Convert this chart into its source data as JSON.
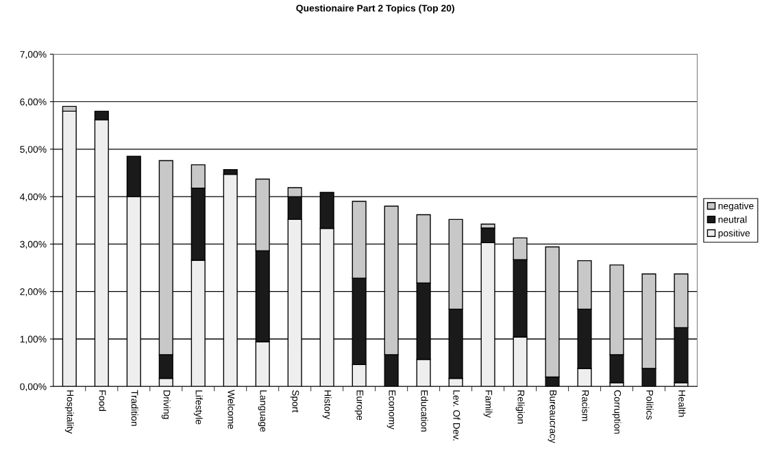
{
  "chart_data": {
    "type": "bar",
    "title": "Questionaire Part 2 Topics (Top 20)",
    "stacked": true,
    "categories": [
      "Hospitality",
      "Food",
      "Tradition",
      "Driving",
      "Lifestyle",
      "Welcome",
      "Language",
      "Sport",
      "History",
      "Europe",
      "Economy",
      "Education",
      "Lev. Of Dev.",
      "Family",
      "Religion",
      "Bureaucracy",
      "Racism",
      "Corruption",
      "Politics",
      "Health"
    ],
    "series": [
      {
        "name": "positive",
        "color": "#eeeeee",
        "values": [
          5.8,
          5.62,
          4.0,
          0.17,
          2.66,
          4.47,
          0.94,
          3.52,
          3.33,
          0.46,
          0,
          0.57,
          0.17,
          3.03,
          1.04,
          0,
          0.38,
          0.08,
          0,
          0.08
        ]
      },
      {
        "name": "neutral",
        "color": "#1a1a1a",
        "values": [
          0,
          0.18,
          0.85,
          0.5,
          1.52,
          0.1,
          1.92,
          0.48,
          0.76,
          1.82,
          0.67,
          1.61,
          1.46,
          0.31,
          1.63,
          0.2,
          1.25,
          0.59,
          0.38,
          1.16
        ]
      },
      {
        "name": "negative",
        "color": "#c8c8c8",
        "values": [
          0.1,
          0,
          0,
          4.09,
          0.49,
          0,
          1.51,
          0.19,
          0,
          1.62,
          3.13,
          1.44,
          1.89,
          0.08,
          0.46,
          2.74,
          1.02,
          1.89,
          1.99,
          1.13
        ]
      }
    ],
    "ylim": [
      0,
      7
    ],
    "yticks": [
      {
        "value": 0,
        "label": "0,00%"
      },
      {
        "value": 1,
        "label": "1,00%"
      },
      {
        "value": 2,
        "label": "2,00%"
      },
      {
        "value": 3,
        "label": "3,00%"
      },
      {
        "value": 4,
        "label": "4,00%"
      },
      {
        "value": 5,
        "label": "5,00%"
      },
      {
        "value": 6,
        "label": "6,00%"
      },
      {
        "value": 7,
        "label": "7,00%"
      }
    ],
    "grid": "y",
    "legend": "right"
  }
}
